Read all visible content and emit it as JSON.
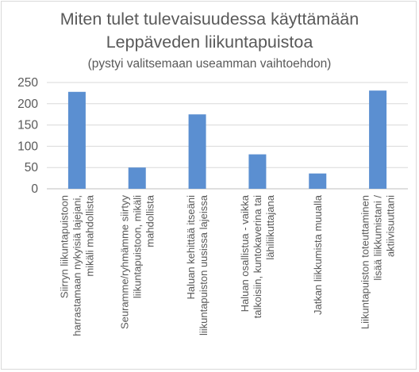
{
  "chart_data": {
    "type": "bar",
    "title": "Miten tulet tulevaisuudessa käyttämään",
    "title_line2": "Leppäveden liikuntapuistoa",
    "subtitle": "(pystyi valitsemaan useamman vaihtoehdon)",
    "xlabel": "",
    "ylabel": "",
    "ylim": [
      0,
      250
    ],
    "yticks": [
      0,
      50,
      100,
      150,
      200,
      250
    ],
    "grid": true,
    "legend": "none",
    "bar_color": "#5b8fd1",
    "categories": [
      [
        "Siirryn liikuntapuistoon",
        "harrastamaan nykyisiä lajejani,",
        "mikäli mahdollista"
      ],
      [
        "Seuramme/ryhmämme siirtyy",
        "liikuntapuistoon, mikäli",
        "mahdollista"
      ],
      [
        "Haluan kehittää itseäni",
        "liikuntapuiston uusissa lajeissa"
      ],
      [
        "Haluan osallistua - vaikka",
        "talkoisiin, kuntokaverina tai",
        "lähiliikuttajana"
      ],
      [
        "Jatkan liikkumista muualla"
      ],
      [
        "Liikuntapuiston toteuttaminen",
        "lisää liikkumistani /",
        "aktiivisuuttani"
      ]
    ],
    "values": [
      228,
      50,
      175,
      81,
      36,
      231
    ]
  }
}
